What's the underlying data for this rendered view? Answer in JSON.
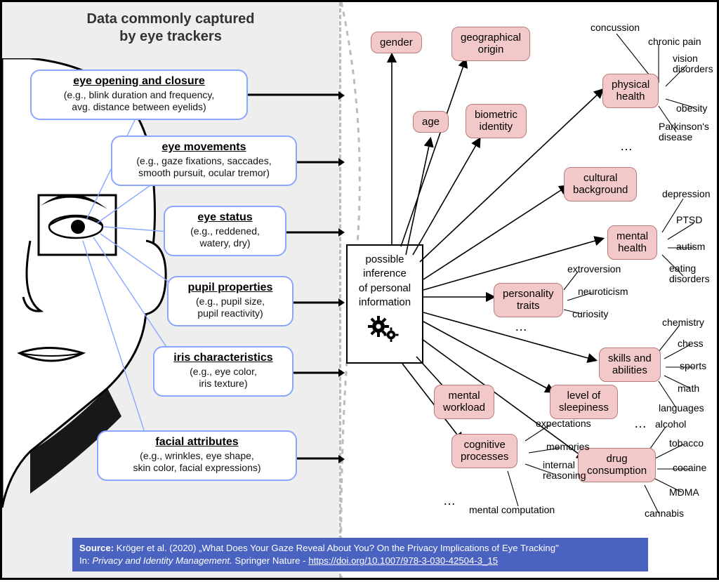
{
  "title_l1": "Data commonly captured",
  "title_l2": "by eye trackers",
  "blue_boxes": {
    "b1": {
      "title": "eye opening and closure",
      "desc": "(e.g., blink duration and frequency,\navg. distance between eyelids)"
    },
    "b2": {
      "title": "eye movements",
      "desc": "(e.g., gaze fixations, saccades,\nsmooth pursuit, ocular tremor)"
    },
    "b3": {
      "title": "eye status",
      "desc": "(e.g., reddened,\nwatery, dry)"
    },
    "b4": {
      "title": "pupil properties",
      "desc": "(e.g., pupil size,\npupil reactivity)"
    },
    "b5": {
      "title": "iris characteristics",
      "desc": "(e.g., eye color,\niris texture)"
    },
    "b6": {
      "title": "facial attributes",
      "desc": "(e.g., wrinkles, eye shape,\nskin color, facial expressions)"
    }
  },
  "center_box": "possible\ninference\nof personal\ninformation",
  "pink": {
    "gender": "gender",
    "age": "age",
    "geo": "geographical\norigin",
    "bio": "biometric\nidentity",
    "phys": "physical\nhealth",
    "cult": "cultural\nbackground",
    "mental": "mental\nhealth",
    "pers": "personality\ntraits",
    "skills": "skills and\nabilities",
    "sleep": "level of\nsleepiness",
    "workload": "mental\nworkload",
    "cog": "cognitive\nprocesses",
    "drug": "drug\nconsumption"
  },
  "subs": {
    "phys": [
      "concussion",
      "chronic pain",
      "vision\ndisorders",
      "obesity",
      "Parkinson's\ndisease"
    ],
    "mental": [
      "depression",
      "PTSD",
      "autism",
      "eating\ndisorders"
    ],
    "pers": [
      "extroversion",
      "neuroticism",
      "curiosity"
    ],
    "skills": [
      "chemistry",
      "chess",
      "sports",
      "math",
      "languages"
    ],
    "cog": [
      "expectations",
      "memories",
      "internal\nreasoning",
      "mental computation"
    ],
    "drug": [
      "alcohol",
      "tobacco",
      "cocaine",
      "MDMA",
      "cannabis"
    ]
  },
  "citation": {
    "source_label": "Source:",
    "authors": "Kröger et al. (2020)",
    "title": "„What Does Your Gaze Reveal About You? On the Privacy Implications of Eye Tracking\"",
    "in": "In:",
    "venue": "Privacy and Identity Management.",
    "publisher": "Springer Nature -",
    "url": "https://doi.org/10.1007/978-3-030-42504-3_15"
  },
  "style": {
    "left_bg": "#eeeeee",
    "blue_border": "#8aa7ff",
    "pink_fill": "#f2c8c8",
    "pink_border": "#b87c7c",
    "citation_bg": "#4a62c0",
    "title_fontsize": 20,
    "bluebox_title_fontsize": 16,
    "bluebox_desc_fontsize": 14,
    "pink_fontsize": 15,
    "sublabel_fontsize": 14
  }
}
